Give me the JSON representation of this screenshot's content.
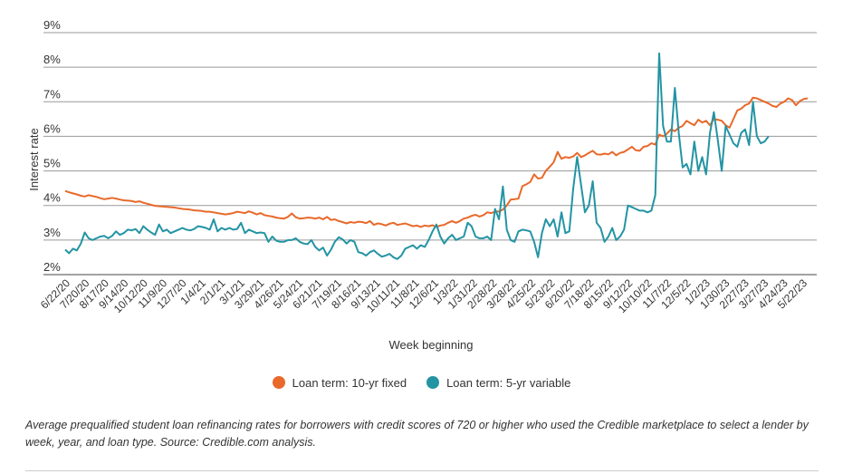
{
  "chart_data": {
    "type": "line",
    "ylabel": "Interest rate",
    "xlabel": "Week beginning",
    "ylim": [
      2,
      9
    ],
    "y_ticks": [
      "2%",
      "3%",
      "4%",
      "5%",
      "6%",
      "7%",
      "8%",
      "9%"
    ],
    "x_tick_labels": [
      "6/22/20",
      "7/20/20",
      "8/17/20",
      "9/14/20",
      "10/12/20",
      "11/9/20",
      "12/7/20",
      "1/4/21",
      "2/1/21",
      "3/1/21",
      "3/29/21",
      "4/26/21",
      "5/24/21",
      "6/21/21",
      "7/19/21",
      "8/16/21",
      "9/13/21",
      "10/11/21",
      "11/8/21",
      "12/6/21",
      "1/3/22",
      "1/31/22",
      "2/28/22",
      "3/28/22",
      "4/25/22",
      "5/23/22",
      "6/20/22",
      "7/18/22",
      "8/15/22",
      "9/12/22",
      "10/10/22",
      "11/7/22",
      "12/5/22",
      "1/2/23",
      "1/30/23",
      "2/27/23",
      "3/27/23",
      "4/24/23",
      "5/22/23"
    ],
    "grid": true,
    "legend_position": "bottom",
    "series": [
      {
        "name": "Loan term: 10-yr fixed",
        "color": "#e8692a",
        "values": [
          4.42,
          4.38,
          4.35,
          4.32,
          4.28,
          4.26,
          4.3,
          4.27,
          4.25,
          4.21,
          4.18,
          4.2,
          4.22,
          4.2,
          4.17,
          4.15,
          4.14,
          4.13,
          4.1,
          4.12,
          4.08,
          4.05,
          4.02,
          3.99,
          3.98,
          3.97,
          3.96,
          3.95,
          3.94,
          3.92,
          3.9,
          3.89,
          3.88,
          3.86,
          3.85,
          3.84,
          3.82,
          3.82,
          3.8,
          3.78,
          3.76,
          3.74,
          3.76,
          3.78,
          3.82,
          3.8,
          3.78,
          3.83,
          3.79,
          3.74,
          3.78,
          3.72,
          3.7,
          3.68,
          3.65,
          3.63,
          3.62,
          3.67,
          3.77,
          3.66,
          3.62,
          3.63,
          3.65,
          3.64,
          3.62,
          3.65,
          3.6,
          3.67,
          3.58,
          3.6,
          3.55,
          3.52,
          3.48,
          3.52,
          3.5,
          3.53,
          3.52,
          3.49,
          3.55,
          3.44,
          3.48,
          3.46,
          3.42,
          3.47,
          3.5,
          3.44,
          3.46,
          3.48,
          3.44,
          3.4,
          3.42,
          3.38,
          3.42,
          3.4,
          3.43,
          3.38,
          3.42,
          3.44,
          3.5,
          3.55,
          3.5,
          3.55,
          3.62,
          3.65,
          3.7,
          3.73,
          3.68,
          3.72,
          3.8,
          3.78,
          3.82,
          3.83,
          3.88,
          4.0,
          4.17,
          4.18,
          4.2,
          4.56,
          4.61,
          4.68,
          4.9,
          4.78,
          4.8,
          5.0,
          5.12,
          5.25,
          5.55,
          5.35,
          5.4,
          5.38,
          5.42,
          5.52,
          5.4,
          5.45,
          5.52,
          5.58,
          5.48,
          5.47,
          5.5,
          5.48,
          5.55,
          5.45,
          5.52,
          5.55,
          5.62,
          5.7,
          5.6,
          5.58,
          5.7,
          5.72,
          5.8,
          5.76,
          6.05,
          6.0,
          6.08,
          6.2,
          6.15,
          6.25,
          6.3,
          6.45,
          6.38,
          6.32,
          6.48,
          6.4,
          6.45,
          6.32,
          6.5,
          6.48,
          6.45,
          6.32,
          6.25,
          6.5,
          6.75,
          6.8,
          6.9,
          6.95,
          7.12,
          7.1,
          7.05,
          7.0,
          6.95,
          6.88,
          6.85,
          6.95,
          7.0,
          7.1,
          7.05,
          6.9,
          7.02,
          7.08,
          7.1
        ]
      },
      {
        "name": "Loan term: 5-yr variable",
        "color": "#2394a4",
        "values": [
          2.72,
          2.62,
          2.75,
          2.7,
          2.9,
          3.22,
          3.05,
          3.0,
          3.05,
          3.1,
          3.12,
          3.05,
          3.12,
          3.25,
          3.15,
          3.2,
          3.3,
          3.28,
          3.32,
          3.2,
          3.4,
          3.3,
          3.22,
          3.15,
          3.45,
          3.25,
          3.3,
          3.2,
          3.25,
          3.3,
          3.35,
          3.3,
          3.28,
          3.32,
          3.4,
          3.38,
          3.35,
          3.3,
          3.6,
          3.25,
          3.35,
          3.3,
          3.35,
          3.3,
          3.32,
          3.5,
          3.2,
          3.3,
          3.25,
          3.2,
          3.22,
          3.2,
          2.95,
          3.1,
          2.98,
          2.95,
          2.95,
          3.0,
          3.0,
          3.05,
          2.95,
          2.9,
          2.88,
          3.0,
          2.8,
          2.7,
          2.78,
          2.55,
          2.72,
          2.95,
          3.08,
          3.02,
          2.9,
          3.0,
          2.95,
          2.65,
          2.62,
          2.55,
          2.65,
          2.7,
          2.6,
          2.52,
          2.55,
          2.6,
          2.5,
          2.45,
          2.55,
          2.75,
          2.8,
          2.85,
          2.75,
          2.85,
          2.8,
          3.0,
          3.25,
          3.45,
          3.1,
          2.9,
          3.05,
          3.15,
          3.0,
          3.05,
          3.1,
          3.5,
          3.4,
          3.1,
          3.05,
          3.05,
          3.1,
          3.0,
          3.9,
          3.6,
          4.55,
          3.3,
          3.0,
          2.95,
          3.25,
          3.3,
          3.28,
          3.25,
          2.95,
          2.5,
          3.2,
          3.6,
          3.4,
          3.6,
          3.1,
          3.8,
          3.2,
          3.25,
          4.5,
          5.4,
          4.6,
          3.8,
          4.0,
          4.7,
          3.5,
          3.35,
          2.95,
          3.1,
          3.35,
          3.0,
          3.1,
          3.3,
          4.0,
          3.95,
          3.9,
          3.85,
          3.85,
          3.8,
          3.85,
          4.3,
          8.4,
          6.3,
          5.85,
          5.85,
          7.4,
          6.1,
          5.1,
          5.2,
          4.9,
          5.85,
          5.0,
          5.4,
          4.9,
          6.1,
          6.7,
          5.9,
          5.0,
          6.3,
          6.05,
          5.8,
          5.7,
          6.1,
          6.2,
          5.75,
          7.0,
          6.0,
          5.8,
          5.85,
          6.0
        ]
      }
    ]
  },
  "legend": {
    "items": [
      {
        "label": "Loan term: 10-yr fixed",
        "color": "#e8692a"
      },
      {
        "label": "Loan term: 5-yr variable",
        "color": "#2394a4"
      }
    ]
  },
  "caption": "Average prequalified student loan refinancing rates for borrowers with credit scores of 720 or higher who used the Credible marketplace to select a lender by week, year, and loan type. Source: Credible.com analysis."
}
